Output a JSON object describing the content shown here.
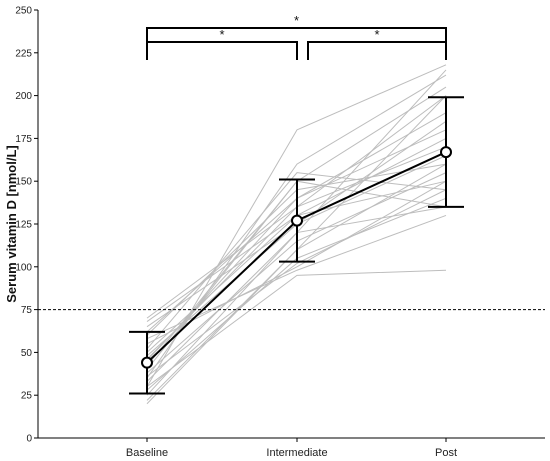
{
  "chart_data": {
    "type": "line",
    "title": "",
    "xlabel": "",
    "ylabel": "Serum vitamin D [nmol/L]",
    "categories": [
      "Baseline",
      "Intermediate",
      "Post"
    ],
    "ylim": [
      0,
      250
    ],
    "yticks": [
      0,
      25,
      50,
      75,
      100,
      125,
      150,
      175,
      200,
      225,
      250
    ],
    "grid": false,
    "legend": "none",
    "reference_line": {
      "y": 75,
      "style": "dashed"
    },
    "mean": {
      "values": [
        44,
        127,
        167
      ],
      "error_low": [
        26,
        103,
        135
      ],
      "error_high": [
        62,
        151,
        199
      ]
    },
    "individual_series": [
      [
        20,
        110,
        200
      ],
      [
        25,
        120,
        215
      ],
      [
        30,
        180,
        218
      ],
      [
        35,
        160,
        212
      ],
      [
        40,
        150,
        205
      ],
      [
        45,
        140,
        190
      ],
      [
        50,
        130,
        175
      ],
      [
        55,
        100,
        150
      ],
      [
        60,
        145,
        160
      ],
      [
        65,
        125,
        185
      ],
      [
        70,
        135,
        170
      ],
      [
        30,
        95,
        98
      ],
      [
        28,
        105,
        140
      ],
      [
        38,
        115,
        155
      ],
      [
        42,
        150,
        135
      ],
      [
        48,
        125,
        165
      ],
      [
        52,
        155,
        145
      ],
      [
        58,
        98,
        130
      ],
      [
        62,
        140,
        180
      ],
      [
        68,
        130,
        150
      ],
      [
        22,
        110,
        160
      ],
      [
        33,
        120,
        135
      ],
      [
        46,
        135,
        200
      ],
      [
        36,
        102,
        145
      ]
    ],
    "significance": [
      {
        "from": "Baseline",
        "to": "Post",
        "label": "*"
      },
      {
        "from": "Baseline",
        "to": "Intermediate",
        "label": "*"
      },
      {
        "from": "Intermediate",
        "to": "Post",
        "label": "*"
      }
    ],
    "colors": {
      "individual": "#bdbdbd",
      "mean": "#000000",
      "reference": "#000000"
    }
  }
}
